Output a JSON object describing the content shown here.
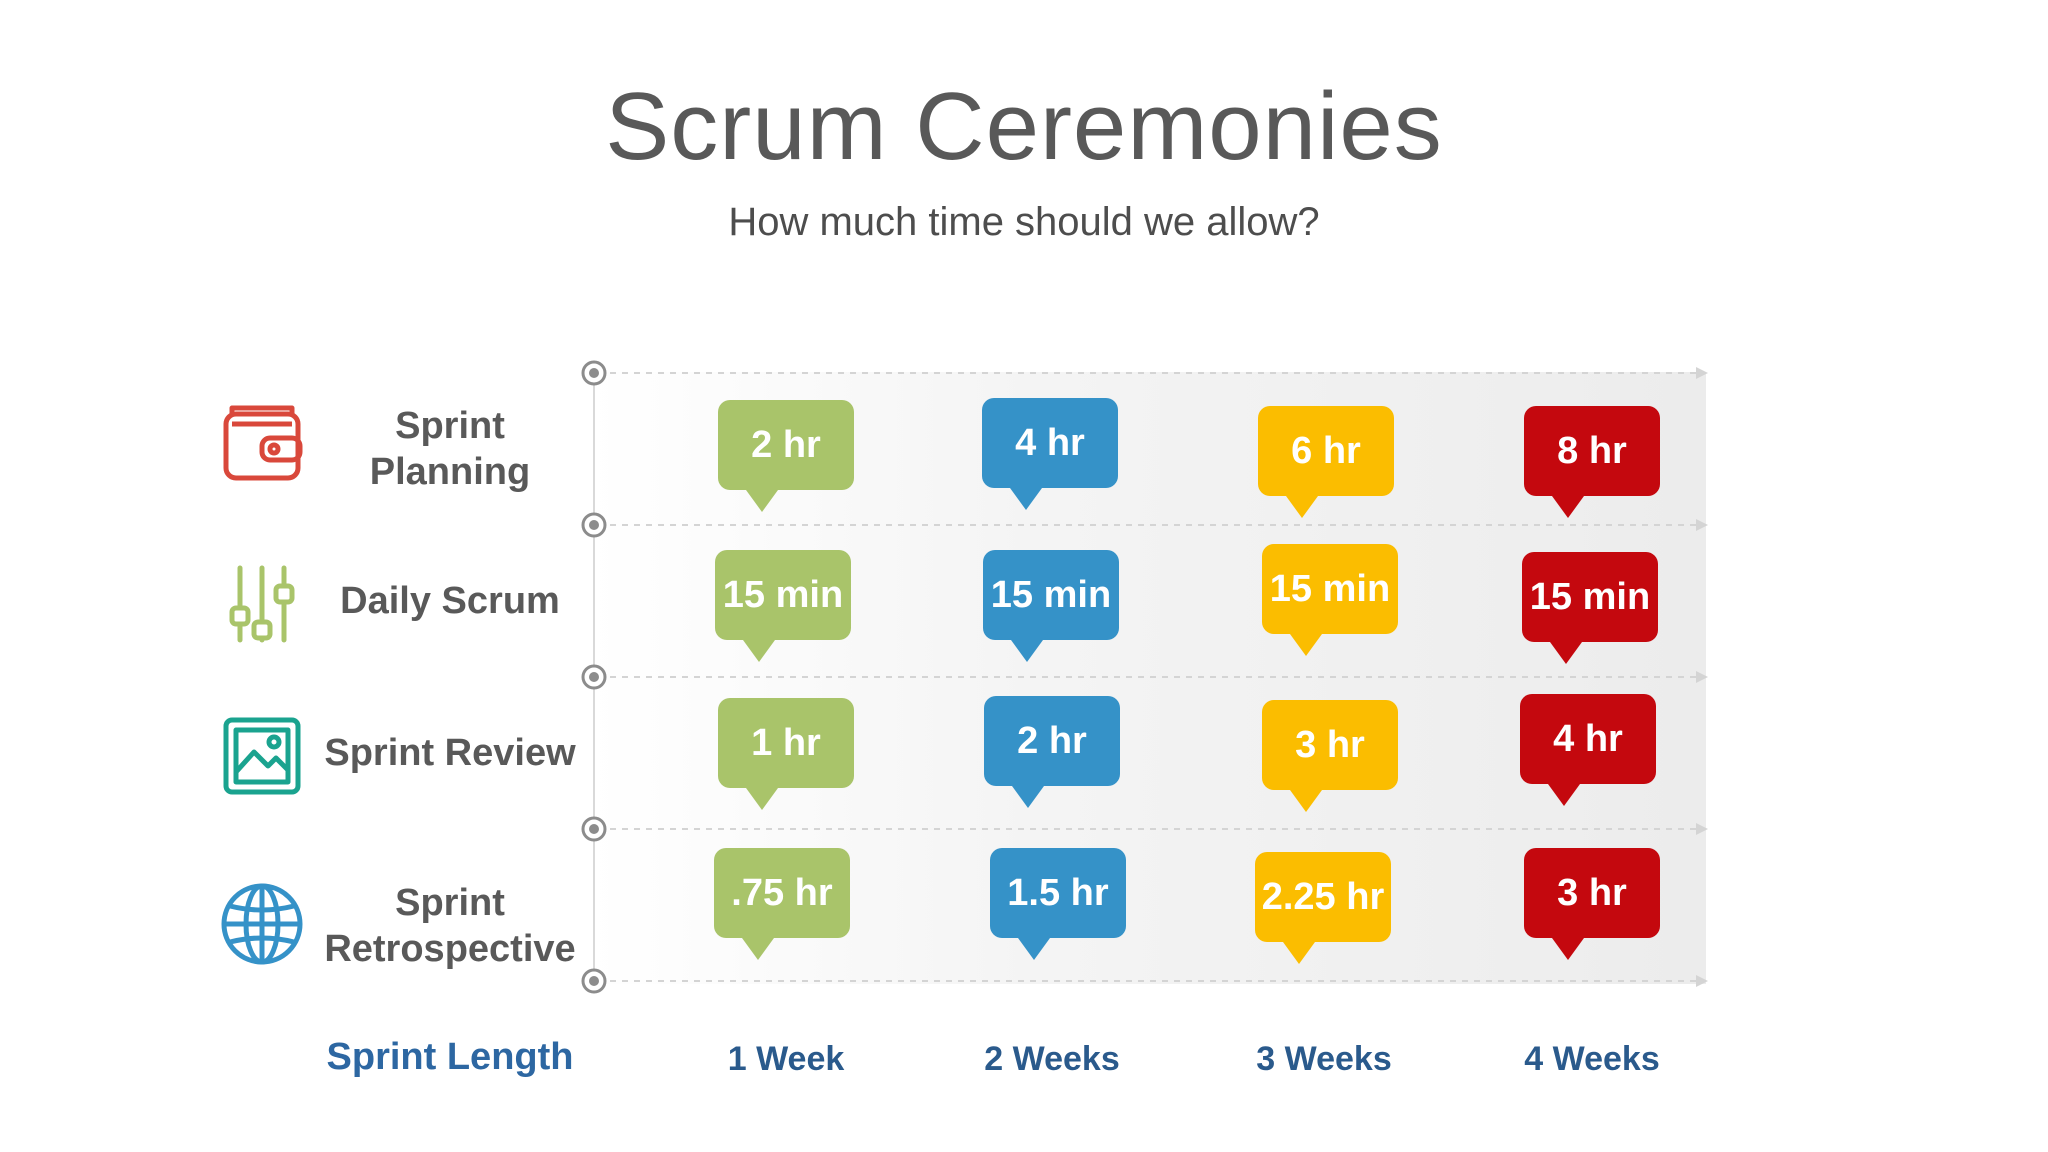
{
  "title": "Scrum Ceremonies",
  "subtitle": "How much time should we allow?",
  "axis_label": "Sprint Length",
  "columns": [
    "1 Week",
    "2 Weeks",
    "3 Weeks",
    "4 Weeks"
  ],
  "column_colors": [
    "#a9c46a",
    "#3592c8",
    "#fbbd00",
    "#c4080e"
  ],
  "rows": [
    {
      "label_line1": "Sprint",
      "label_line2": "Planning",
      "icon": "wallet-icon",
      "icon_color": "#d9483b",
      "values": [
        "2 hr",
        "4 hr",
        "6 hr",
        "8 hr"
      ]
    },
    {
      "label_line1": "Daily Scrum",
      "label_line2": "",
      "icon": "sliders-icon",
      "icon_color": "#a9c46a",
      "values": [
        "15 min",
        "15 min",
        "15 min",
        "15 min"
      ]
    },
    {
      "label_line1": "Sprint Review",
      "label_line2": "",
      "icon": "image-icon",
      "icon_color": "#1aa38f",
      "values": [
        "1 hr",
        "2 hr",
        "3 hr",
        "4 hr"
      ]
    },
    {
      "label_line1": "Sprint",
      "label_line2": "Retrospective",
      "icon": "globe-icon",
      "icon_color": "#3592c8",
      "values": [
        ".75 hr",
        "1.5 hr",
        "2.25 hr",
        "3 hr"
      ]
    }
  ]
}
